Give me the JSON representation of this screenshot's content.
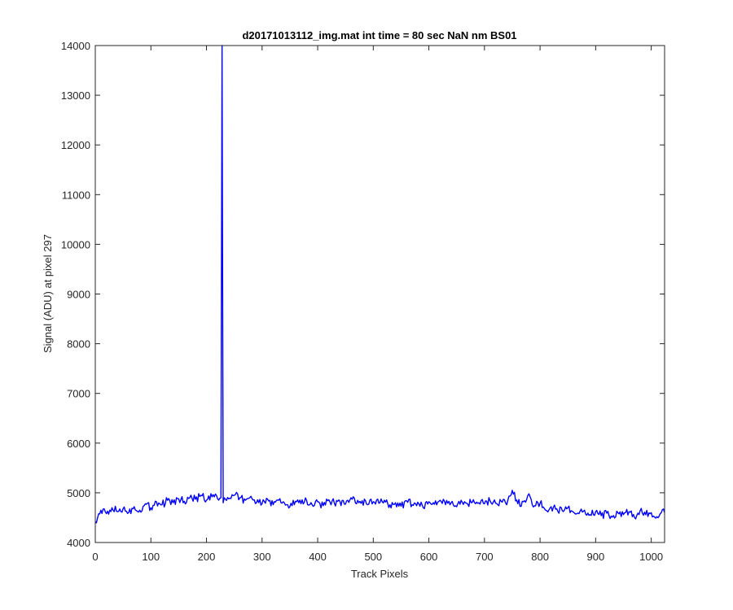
{
  "chart_data": {
    "type": "line",
    "title": "d20171013112_img.mat int time = 80 sec  NaN nm BS01",
    "xlabel": "Track Pixels",
    "ylabel": "Signal (ADU) at pixel 297",
    "xlim": [
      0,
      1024
    ],
    "ylim": [
      4000,
      14000
    ],
    "xticks": [
      0,
      100,
      200,
      300,
      400,
      500,
      600,
      700,
      800,
      900,
      1000
    ],
    "yticks": [
      4000,
      5000,
      6000,
      7000,
      8000,
      9000,
      10000,
      11000,
      12000,
      13000,
      14000
    ],
    "grid": false,
    "box": true,
    "line_color": "#0000ff",
    "series": [
      {
        "x": [
          0,
          10,
          20,
          30,
          40,
          50,
          60,
          70,
          80,
          90,
          100,
          110,
          120,
          130,
          140,
          150,
          160,
          170,
          180,
          190,
          200,
          210,
          220,
          226,
          228,
          230,
          232,
          240,
          250,
          260,
          270,
          280,
          290,
          300,
          310,
          320,
          330,
          340,
          350,
          360,
          370,
          380,
          390,
          400,
          410,
          420,
          430,
          440,
          450,
          460,
          470,
          480,
          490,
          500,
          510,
          520,
          530,
          540,
          550,
          560,
          570,
          580,
          590,
          600,
          610,
          620,
          630,
          640,
          650,
          660,
          670,
          680,
          690,
          700,
          710,
          720,
          730,
          740,
          750,
          760,
          770,
          780,
          790,
          800,
          810,
          820,
          830,
          840,
          850,
          860,
          870,
          880,
          890,
          900,
          910,
          920,
          930,
          940,
          950,
          960,
          970,
          980,
          990,
          1000,
          1010,
          1020,
          1024
        ],
        "y": [
          4420,
          4650,
          4580,
          4700,
          4620,
          4680,
          4600,
          4720,
          4650,
          4780,
          4700,
          4820,
          4760,
          4850,
          4800,
          4880,
          4830,
          4900,
          4870,
          4950,
          4850,
          4920,
          4880,
          4900,
          14000,
          4800,
          4900,
          4880,
          4950,
          4900,
          4850,
          4930,
          4800,
          4780,
          4870,
          4760,
          4850,
          4800,
          4720,
          4830,
          4780,
          4850,
          4760,
          4820,
          4740,
          4860,
          4790,
          4830,
          4770,
          4900,
          4780,
          4840,
          4760,
          4820,
          4790,
          4850,
          4760,
          4800,
          4730,
          4840,
          4760,
          4810,
          4700,
          4820,
          4770,
          4850,
          4760,
          4800,
          4720,
          4810,
          4770,
          4860,
          4800,
          4780,
          4840,
          4790,
          4830,
          4760,
          5050,
          4780,
          4820,
          4980,
          4740,
          4790,
          4650,
          4720,
          4680,
          4640,
          4700,
          4610,
          4580,
          4650,
          4560,
          4620,
          4540,
          4590,
          4510,
          4600,
          4560,
          4620,
          4500,
          4640,
          4560,
          4600,
          4520,
          4660,
          4600
        ]
      }
    ]
  }
}
